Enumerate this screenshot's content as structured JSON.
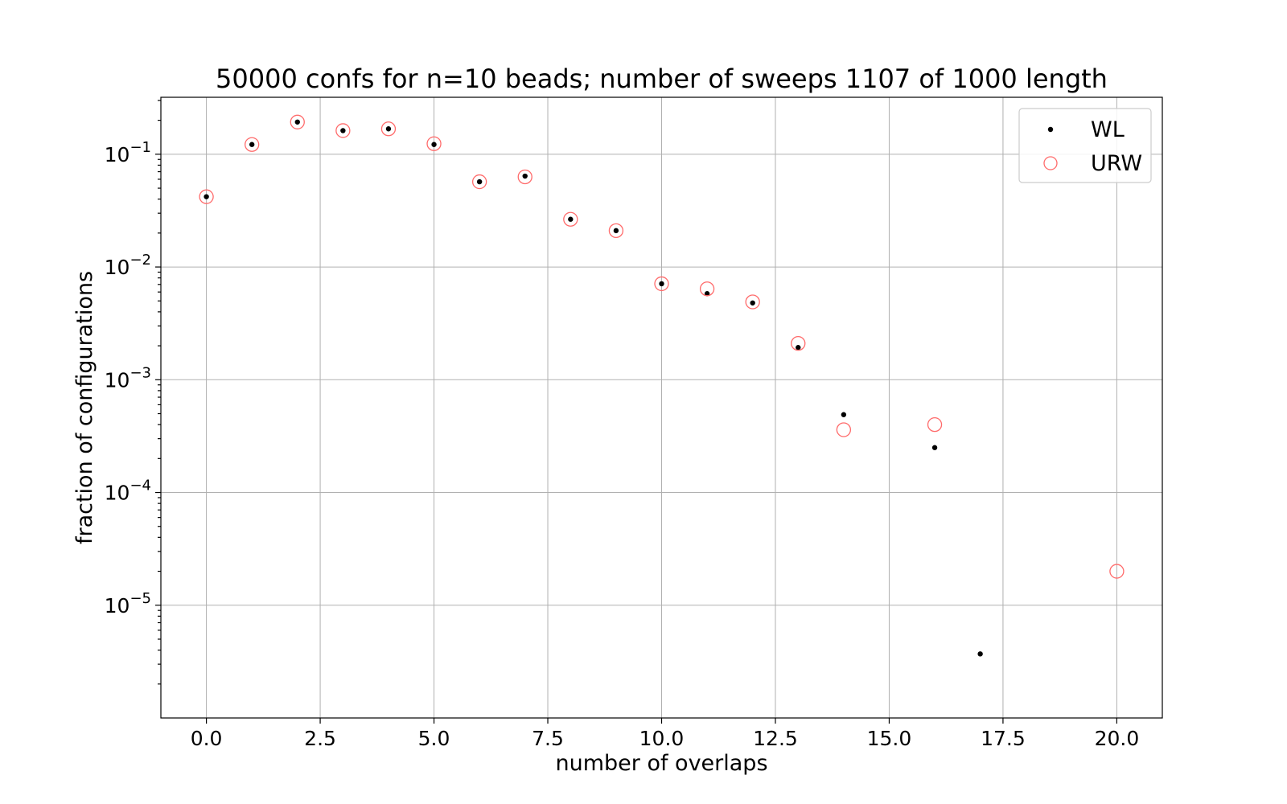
{
  "chart_data": {
    "type": "scatter",
    "title": "50000 confs for n=10 beads; number of sweeps 1107 of 1000 length",
    "xlabel": "number of overlaps",
    "ylabel": "fraction of configurations",
    "xlim": [
      -1.0,
      21.0
    ],
    "ylim": [
      1e-06,
      0.32
    ],
    "yscale": "log",
    "grid": true,
    "legend_position": "upper right",
    "x_ticks": [
      0.0,
      2.5,
      5.0,
      7.5,
      10.0,
      12.5,
      15.0,
      17.5,
      20.0
    ],
    "x_tick_labels": [
      "0.0",
      "2.5",
      "5.0",
      "7.5",
      "10.0",
      "12.5",
      "15.0",
      "17.5",
      "20.0"
    ],
    "y_ticks": [
      {
        "value": 1e-05,
        "base": "10",
        "exp": "−5"
      },
      {
        "value": 0.0001,
        "base": "10",
        "exp": "−4"
      },
      {
        "value": 0.001,
        "base": "10",
        "exp": "−3"
      },
      {
        "value": 0.01,
        "base": "10",
        "exp": "−2"
      },
      {
        "value": 0.1,
        "base": "10",
        "exp": "−1"
      }
    ],
    "series": [
      {
        "name": "WL",
        "marker": "dot",
        "color": "#000000",
        "x": [
          0,
          1,
          2,
          3,
          4,
          5,
          6,
          7,
          8,
          9,
          10,
          11,
          12,
          13,
          14,
          16,
          17
        ],
        "y": [
          0.042,
          0.122,
          0.193,
          0.162,
          0.168,
          0.122,
          0.057,
          0.064,
          0.0265,
          0.021,
          0.0071,
          0.0058,
          0.0048,
          0.00193,
          0.00049,
          0.00025,
          3.7e-06
        ]
      },
      {
        "name": "URW",
        "marker": "circle",
        "color": "#ff6b6b",
        "x": [
          0,
          1,
          2,
          3,
          4,
          5,
          6,
          7,
          8,
          9,
          10,
          11,
          12,
          13,
          14,
          16,
          20
        ],
        "y": [
          0.042,
          0.122,
          0.193,
          0.162,
          0.168,
          0.124,
          0.057,
          0.063,
          0.0265,
          0.021,
          0.0071,
          0.0064,
          0.0049,
          0.0021,
          0.00036,
          0.0004,
          2e-05
        ]
      }
    ]
  }
}
